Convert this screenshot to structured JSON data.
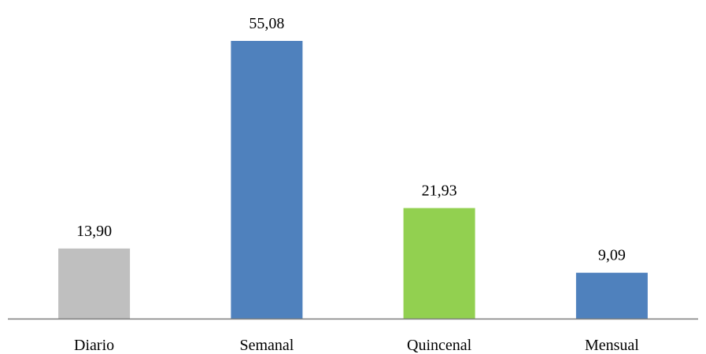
{
  "chart_data": {
    "type": "bar",
    "categories": [
      "Diario",
      "Semanal",
      "Quincenal",
      "Mensual"
    ],
    "values": [
      13.9,
      55.08,
      21.93,
      9.09
    ],
    "value_labels": [
      "13,90",
      "55,08",
      "21,93",
      "9,09"
    ],
    "colors": [
      "#bfbfbf",
      "#4f81bd",
      "#92d050",
      "#4f81bd"
    ],
    "axis_color": "#7f7f7f",
    "title": "",
    "xlabel": "",
    "ylabel": "",
    "ylim": [
      0,
      55.08
    ],
    "grid": false,
    "legend": "none"
  }
}
